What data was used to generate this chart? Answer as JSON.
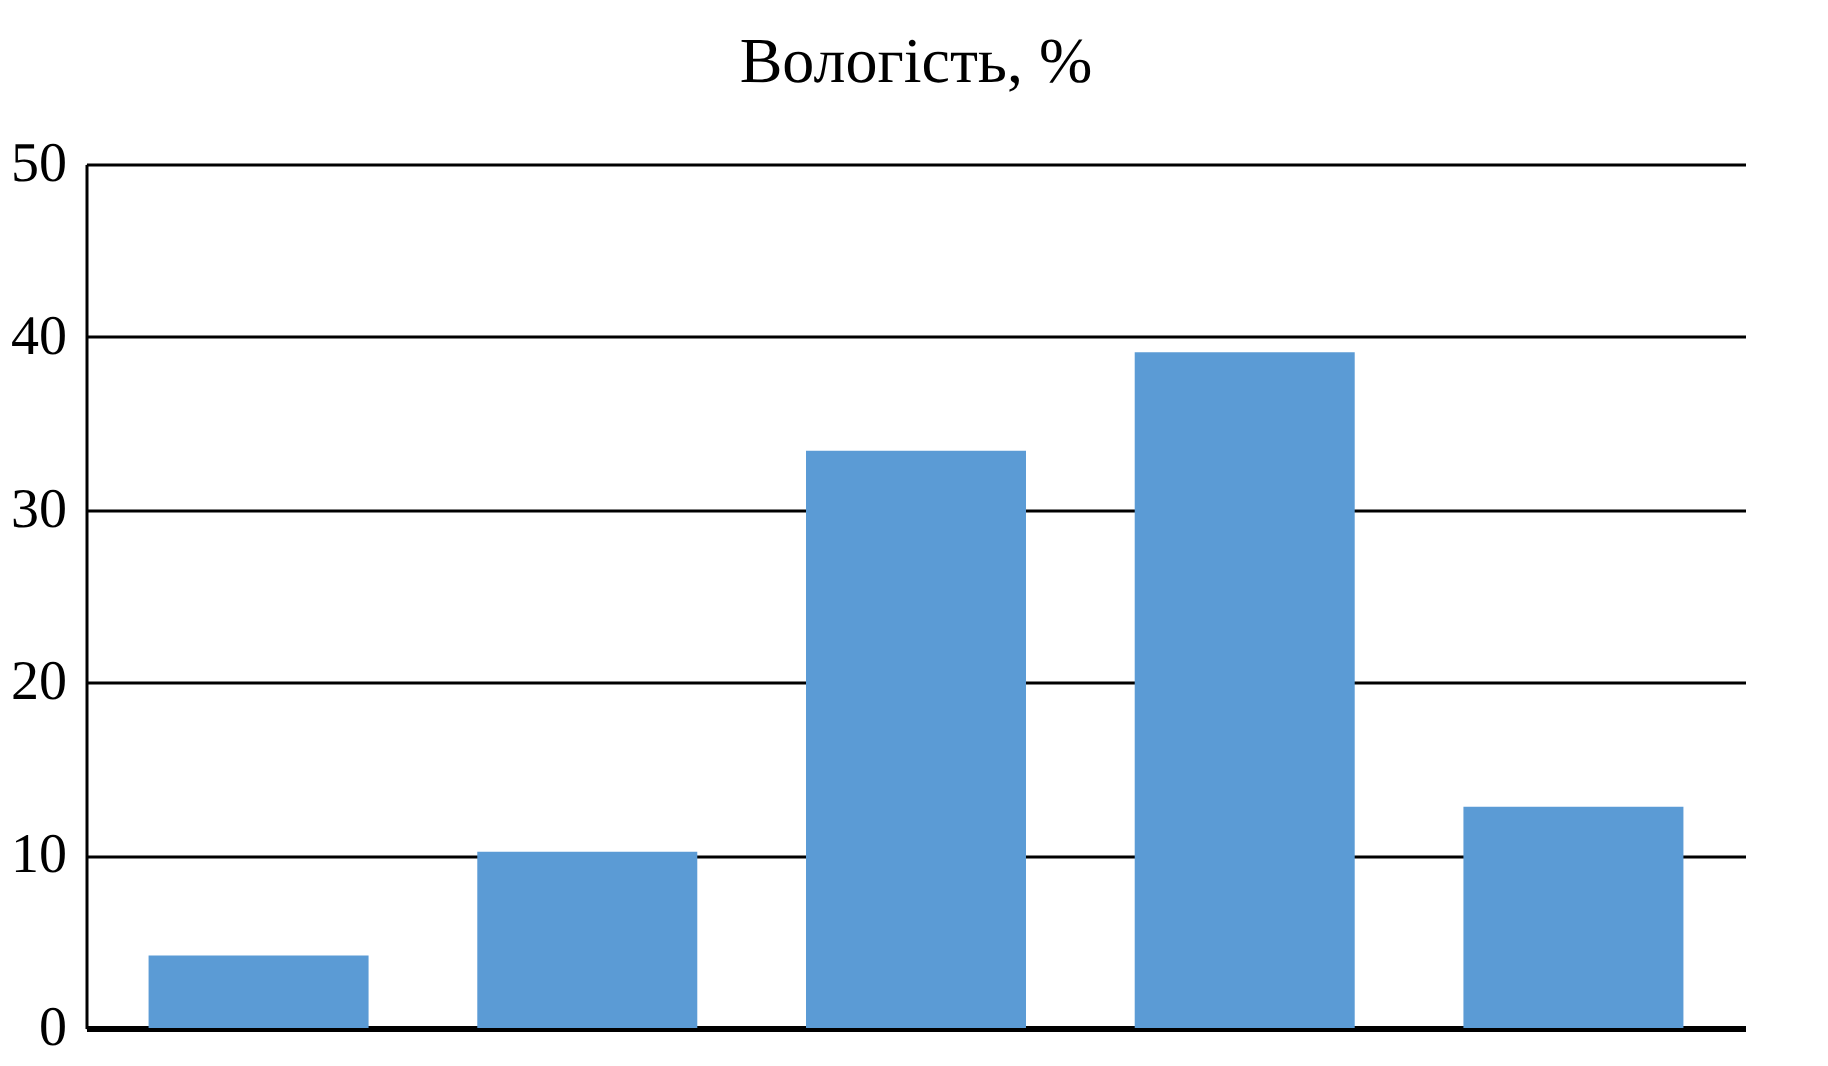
{
  "chart_data": {
    "type": "bar",
    "title": "Вологість, %",
    "categories": [
      null,
      null,
      null,
      null,
      null
    ],
    "values": [
      4.2,
      10.2,
      33.4,
      39.1,
      12.8
    ],
    "color": "#5b9bd5",
    "ylim": [
      0,
      50
    ],
    "yticks": [
      0,
      10,
      20,
      30,
      40,
      50
    ],
    "grid": "y",
    "tick_labels": "y"
  }
}
